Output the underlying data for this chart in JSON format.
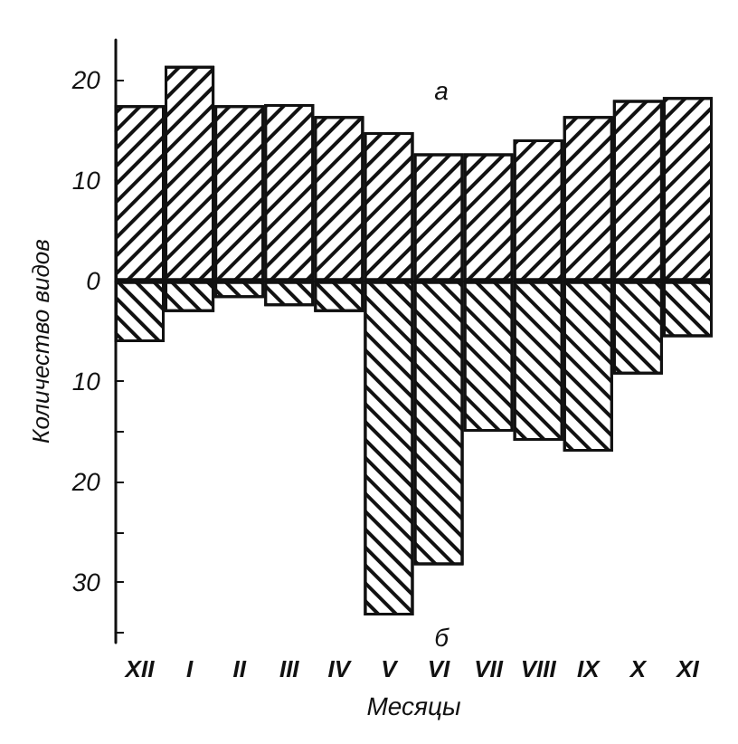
{
  "chart_data": {
    "type": "bar",
    "xlabel": "Месяцы",
    "ylabel": "Количество видов",
    "categories": [
      "XII",
      "I",
      "II",
      "III",
      "IV",
      "V",
      "VI",
      "VII",
      "VIII",
      "IX",
      "X",
      "XI"
    ],
    "stacked": true,
    "series": [
      {
        "color": "#111111",
        "values": [
          17.5,
          21.4,
          17.5,
          17.6,
          16.4,
          14.8,
          12.7,
          12.7,
          14.1,
          16.4,
          18.0,
          18.3
        ]
      },
      {
        "color": "#111111",
        "values": [
          -6.1,
          -3.1,
          -1.7,
          -2.5,
          -3.1,
          -33.3,
          -28.3,
          -15.0,
          -15.9,
          -17.0,
          -9.3,
          -5.6
        ]
      }
    ],
    "ylim": [
      -36,
      24
    ],
    "yticks": [
      {
        "value": -35,
        "label": null
      },
      {
        "value": -30,
        "label": "30"
      },
      {
        "value": -25,
        "label": null
      },
      {
        "value": -20,
        "label": "20"
      },
      {
        "value": -15,
        "label": null
      },
      {
        "value": -10,
        "label": "10"
      },
      {
        "value": -5,
        "label": null
      },
      0,
      {
        "value": 5,
        "label": null
      },
      10,
      {
        "value": 15,
        "label": null
      },
      20
    ],
    "ref_lines": [
      {
        "axis": "y",
        "value": 0,
        "color": "#111111"
      }
    ],
    "annotations": [
      "а",
      "б"
    ],
    "grid": false
  }
}
